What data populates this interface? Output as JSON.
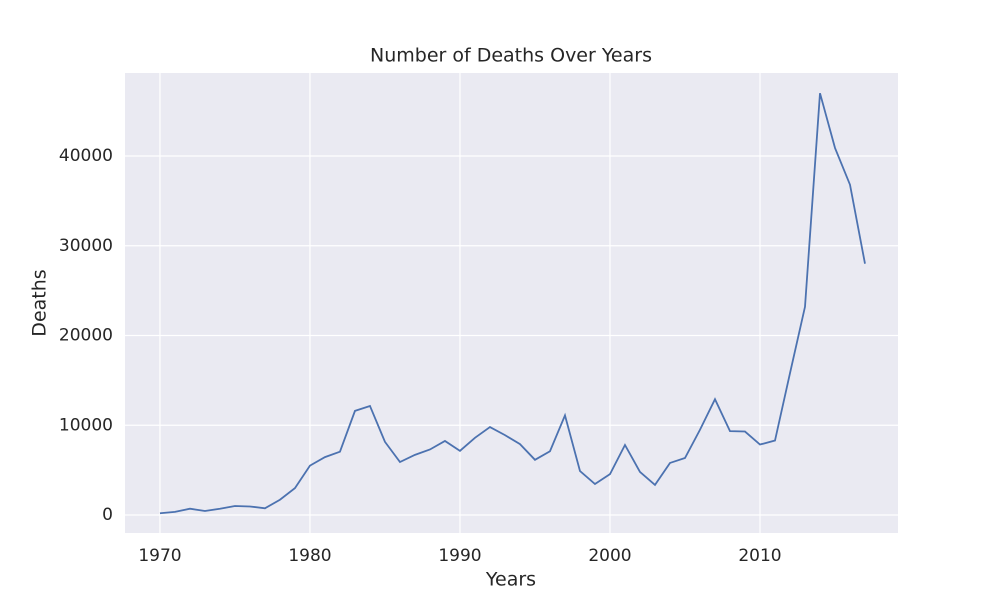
{
  "chart_data": {
    "type": "line",
    "title": "Number of Deaths Over Years",
    "x_label": "Years",
    "y_label": "Deaths",
    "x": [
      1970,
      1971,
      1972,
      1973,
      1974,
      1975,
      1976,
      1977,
      1978,
      1979,
      1980,
      1981,
      1982,
      1983,
      1984,
      1985,
      1986,
      1987,
      1988,
      1989,
      1990,
      1991,
      1992,
      1993,
      1994,
      1995,
      1996,
      1997,
      1998,
      1999,
      2000,
      2001,
      2002,
      2003,
      2004,
      2005,
      2006,
      2007,
      2008,
      2009,
      2010,
      2011,
      2012,
      2013,
      2014,
      2015,
      2016,
      2017
    ],
    "series": [
      {
        "name": "Deaths",
        "color": "#4c72b0",
        "values": [
          200,
          350,
          700,
          450,
          700,
          1000,
          950,
          750,
          1700,
          3000,
          5500,
          6450,
          7050,
          11600,
          12150,
          8150,
          5900,
          6700,
          7300,
          8250,
          7150,
          8600,
          9800,
          8900,
          7900,
          6150,
          7100,
          11100,
          4900,
          3450,
          4550,
          7800,
          4800,
          3350,
          5800,
          6350,
          9500,
          12900,
          9350,
          9300,
          7850,
          8300,
          15800,
          23200,
          47000,
          40900,
          36800,
          28000
        ]
      }
    ],
    "xlim": [
      1967.67,
      2019.2
    ],
    "ylim": [
      -2005,
      49248
    ],
    "xticks": [
      1970,
      1980,
      1990,
      2000,
      2010
    ],
    "yticks": [
      0,
      10000,
      20000,
      30000,
      40000
    ],
    "grid": true
  }
}
